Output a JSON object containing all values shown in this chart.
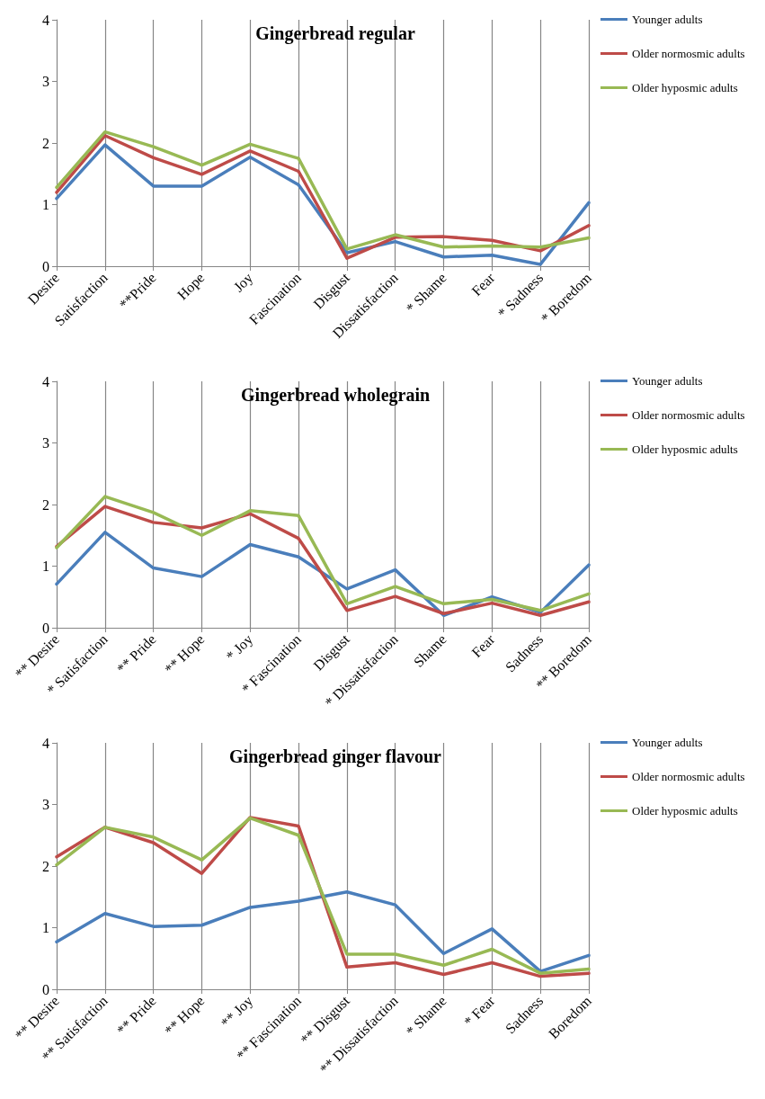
{
  "chart_data": [
    {
      "type": "line",
      "title": "Gingerbread regular",
      "categories": [
        "Desire",
        "Satisfaction",
        "**Pride",
        "Hope",
        "Joy",
        "Fascination",
        "Disgust",
        "Dissatisfaction",
        "* Shame",
        "Fear",
        "* Sadness",
        "* Boredom"
      ],
      "series": [
        {
          "name": "Younger adults",
          "color": "#4a7ebb",
          "values": [
            1.1,
            1.97,
            1.3,
            1.3,
            1.77,
            1.32,
            0.22,
            0.4,
            0.15,
            0.18,
            0.03,
            1.03
          ]
        },
        {
          "name": "Older normosmic adults",
          "color": "#be4b48",
          "values": [
            1.2,
            2.12,
            1.76,
            1.49,
            1.87,
            1.54,
            0.13,
            0.47,
            0.48,
            0.42,
            0.25,
            0.66
          ]
        },
        {
          "name": "Older hyposmic adults",
          "color": "#98b954",
          "values": [
            1.28,
            2.18,
            1.94,
            1.64,
            1.98,
            1.75,
            0.28,
            0.51,
            0.31,
            0.33,
            0.31,
            0.46
          ]
        }
      ],
      "ylim": [
        0,
        4
      ],
      "yticks": [
        0,
        1,
        2,
        3,
        4
      ],
      "grid": "x",
      "legend": "top right",
      "marker": "none",
      "line_style": "solid"
    },
    {
      "type": "line",
      "title": "Gingerbread wholegrain",
      "categories": [
        "** Desire",
        "* Satisfaction",
        "** Pride",
        "** Hope",
        "* Joy",
        "* Fascination",
        "Disgust",
        "* Dissatisfaction",
        "Shame",
        "Fear",
        "Sadness",
        "** Boredom"
      ],
      "series": [
        {
          "name": "Younger adults",
          "color": "#4a7ebb",
          "values": [
            0.71,
            1.55,
            0.97,
            0.83,
            1.35,
            1.15,
            0.63,
            0.94,
            0.2,
            0.5,
            0.25,
            1.02
          ]
        },
        {
          "name": "Older normosmic adults",
          "color": "#be4b48",
          "values": [
            1.32,
            1.97,
            1.71,
            1.62,
            1.85,
            1.45,
            0.28,
            0.51,
            0.23,
            0.4,
            0.2,
            0.42
          ]
        },
        {
          "name": "Older hyposmic adults",
          "color": "#98b954",
          "values": [
            1.3,
            2.13,
            1.87,
            1.5,
            1.9,
            1.82,
            0.39,
            0.67,
            0.39,
            0.46,
            0.28,
            0.55
          ]
        }
      ],
      "ylim": [
        0,
        4
      ],
      "yticks": [
        0,
        1,
        2,
        3,
        4
      ],
      "grid": "x",
      "legend": "top right",
      "marker": "none",
      "line_style": "solid"
    },
    {
      "type": "line",
      "title": "Gingerbread ginger flavour",
      "categories": [
        "** Desire",
        "** Satisfaction",
        "** Pride",
        "** Hope",
        "** Joy",
        "** Fascination",
        "** Disgust",
        "** Dissatisfaction",
        "* Shame",
        "* Fear",
        "Sadness",
        "Boredom"
      ],
      "series": [
        {
          "name": "Younger adults",
          "color": "#4a7ebb",
          "values": [
            0.77,
            1.23,
            1.02,
            1.04,
            1.33,
            1.43,
            1.58,
            1.37,
            0.58,
            0.98,
            0.29,
            0.55
          ]
        },
        {
          "name": "Older normosmic adults",
          "color": "#be4b48",
          "values": [
            2.15,
            2.63,
            2.38,
            1.88,
            2.79,
            2.65,
            0.36,
            0.43,
            0.24,
            0.43,
            0.21,
            0.26
          ]
        },
        {
          "name": "Older hyposmic adults",
          "color": "#98b954",
          "values": [
            2.02,
            2.63,
            2.47,
            2.1,
            2.78,
            2.5,
            0.57,
            0.57,
            0.39,
            0.65,
            0.26,
            0.33
          ]
        }
      ],
      "ylim": [
        0,
        4
      ],
      "yticks": [
        0,
        1,
        2,
        3,
        4
      ],
      "grid": "x",
      "legend": "top right",
      "marker": "none",
      "line_style": "solid"
    }
  ]
}
